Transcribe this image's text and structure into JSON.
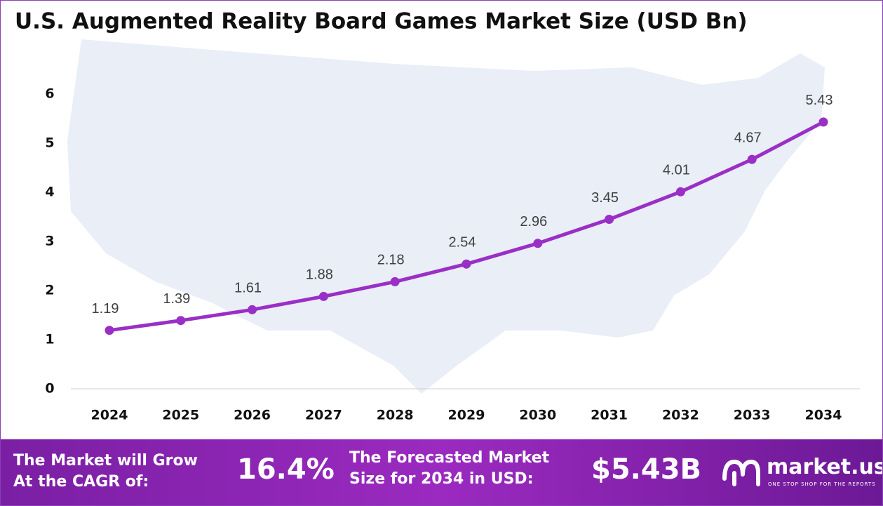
{
  "chart_data": {
    "type": "line",
    "title": "U.S. Augmented Reality Board Games Market Size (USD Bn)",
    "categories": [
      "2024",
      "2025",
      "2026",
      "2027",
      "2028",
      "2029",
      "2030",
      "2031",
      "2032",
      "2033",
      "2034"
    ],
    "series": [
      {
        "name": "Market Size",
        "color": "#9a2fc6",
        "values": [
          1.19,
          1.39,
          1.61,
          1.88,
          2.18,
          2.54,
          2.96,
          3.45,
          4.01,
          4.67,
          5.43
        ]
      }
    ],
    "ylim": [
      0,
      6
    ],
    "yticks": [
      0,
      1,
      2,
      3,
      4,
      5,
      6
    ],
    "grid": false
  },
  "footer": {
    "cagr_label": [
      "The Market will Grow",
      "At the CAGR of:"
    ],
    "cagr_value": "16.4%",
    "forecast_label": [
      "The Forecasted Market",
      "Size for 2034 in USD:"
    ],
    "forecast_value": "$5.43B",
    "brand": "market.us",
    "tagline": "ONE STOP SHOP FOR THE REPORTS"
  }
}
